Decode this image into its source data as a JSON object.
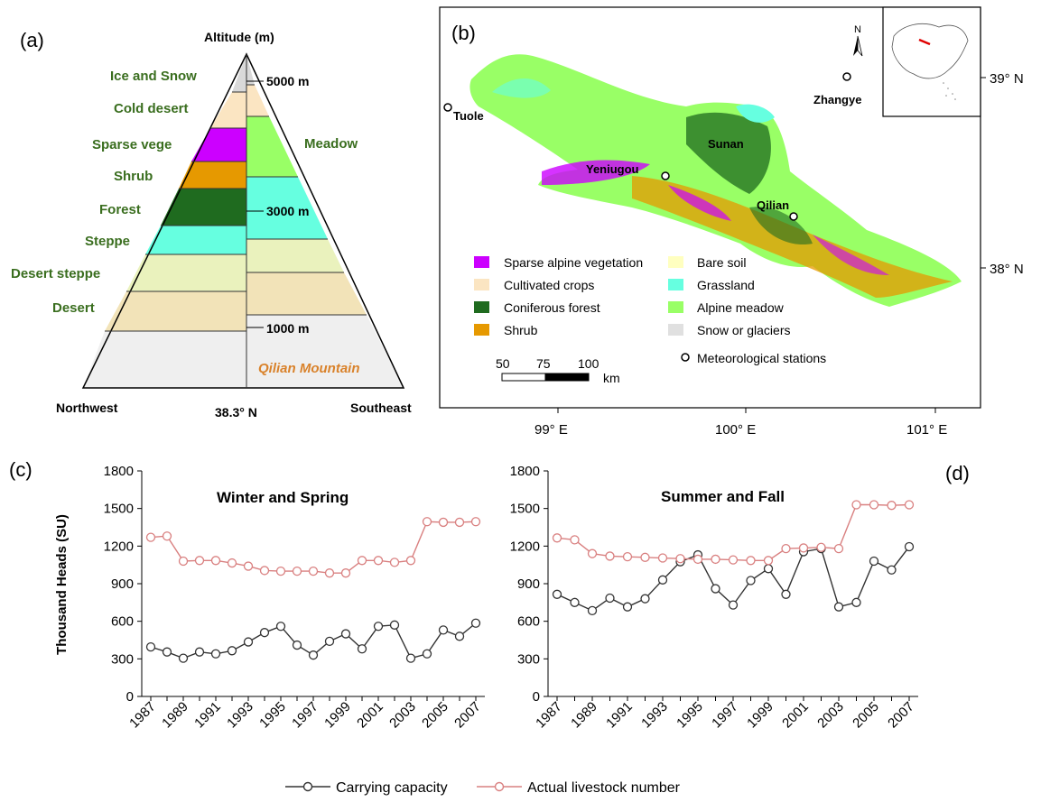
{
  "panels": {
    "a": {
      "letter": "(a)",
      "top_label": "Altitude (m)",
      "zones_left": [
        "Ice and Snow",
        "Cold desert",
        "Sparse vege",
        "Shrub",
        "Forest",
        "Steppe",
        "Desert steppe",
        "Desert"
      ],
      "zones_right": [
        "Meadow"
      ],
      "altitudes": [
        "5000 m",
        "3000 m",
        "1000 m"
      ],
      "mountain_label": "Qilian Mountain",
      "bottom_left": "Northwest",
      "bottom_center": "38.3° N",
      "bottom_right": "Southeast",
      "colors": {
        "snow": "#d9d9d9",
        "cold_desert": "#fbe5c2",
        "sparse": "#cc00ff",
        "shrub": "#e69900",
        "forest": "#1f6b1f",
        "steppe": "#66ffe0",
        "desert_steppe": "#eaf2bd",
        "desert": "#f2e3b8",
        "base": "#efefef",
        "meadow": "#99ff66",
        "mountain_text": "#d9822b"
      }
    },
    "b": {
      "letter": "(b)",
      "stations": [
        "Tuole",
        "Yeniugou",
        "Sunan",
        "Qilian",
        "Zhangye"
      ],
      "legend": [
        {
          "label": "Sparse alpine vegetation",
          "color": "#cc00ff"
        },
        {
          "label": "Cultivated crops",
          "color": "#fbe5c2"
        },
        {
          "label": "Coniferous forest",
          "color": "#1f6b1f"
        },
        {
          "label": "Shrub",
          "color": "#e69900"
        },
        {
          "label": "Bare soil",
          "color": "#ffffc0"
        },
        {
          "label": "Grassland",
          "color": "#66ffe0"
        },
        {
          "label": "Alpine meadow",
          "color": "#99ff66"
        },
        {
          "label": "Snow or glaciers",
          "color": "#e0e0e0"
        },
        {
          "label": "Meteorological stations",
          "color": "#000000"
        }
      ],
      "scale_ticks": [
        "50",
        "75",
        "100"
      ],
      "scale_unit": "km",
      "north": "N",
      "lon_ticks": [
        "99° E",
        "100° E",
        "101° E"
      ],
      "lat_ticks": [
        "39° N",
        "38° N"
      ]
    },
    "c": {
      "letter": "(c)"
    },
    "d": {
      "letter": "(d)"
    }
  },
  "legend": {
    "carrying": "Carrying capacity",
    "actual": "Actual livestock number",
    "carrying_color": "#333333",
    "actual_color": "#d98080"
  },
  "chart_data": [
    {
      "type": "line",
      "title": "Winter and Spring",
      "ylabel": "Thousand Heads (SU)",
      "x": [
        1987,
        1988,
        1989,
        1990,
        1991,
        1992,
        1993,
        1994,
        1995,
        1996,
        1997,
        1998,
        1999,
        2000,
        2001,
        2002,
        2003,
        2004,
        2005,
        2006,
        2007
      ],
      "xticks": [
        "1987",
        "1989",
        "1991",
        "1993",
        "1995",
        "1997",
        "1999",
        "2001",
        "2003",
        "2005",
        "2007"
      ],
      "yticks": [
        "0",
        "300",
        "600",
        "900",
        "1200",
        "1500",
        "1800"
      ],
      "ylim": [
        0,
        1800
      ],
      "series": [
        {
          "name": "Carrying capacity",
          "values": [
            395,
            355,
            305,
            355,
            340,
            365,
            435,
            510,
            560,
            410,
            330,
            440,
            500,
            380,
            560,
            570,
            305,
            340,
            530,
            480,
            585
          ]
        },
        {
          "name": "Actual livestock number",
          "values": [
            1270,
            1280,
            1080,
            1085,
            1085,
            1065,
            1040,
            1005,
            1000,
            1000,
            1000,
            985,
            985,
            1085,
            1085,
            1070,
            1085,
            1395,
            1390,
            1390,
            1395
          ]
        }
      ]
    },
    {
      "type": "line",
      "title": "Summer and Fall",
      "ylabel": "",
      "x": [
        1987,
        1988,
        1989,
        1990,
        1991,
        1992,
        1993,
        1994,
        1995,
        1996,
        1997,
        1998,
        1999,
        2000,
        2001,
        2002,
        2003,
        2004,
        2005,
        2006,
        2007
      ],
      "xticks": [
        "1987",
        "1989",
        "1991",
        "1993",
        "1995",
        "1997",
        "1999",
        "2001",
        "2003",
        "2005",
        "2007"
      ],
      "yticks": [
        "0",
        "300",
        "600",
        "900",
        "1200",
        "1500",
        "1800"
      ],
      "ylim": [
        0,
        1800
      ],
      "series": [
        {
          "name": "Carrying capacity",
          "values": [
            815,
            750,
            685,
            785,
            715,
            780,
            930,
            1075,
            1130,
            860,
            730,
            925,
            1020,
            815,
            1155,
            1180,
            715,
            750,
            1080,
            1010,
            1195
          ]
        },
        {
          "name": "Actual livestock number",
          "values": [
            1265,
            1250,
            1140,
            1120,
            1115,
            1110,
            1105,
            1100,
            1095,
            1095,
            1090,
            1085,
            1085,
            1180,
            1185,
            1190,
            1180,
            1530,
            1530,
            1525,
            1530
          ]
        }
      ]
    }
  ]
}
